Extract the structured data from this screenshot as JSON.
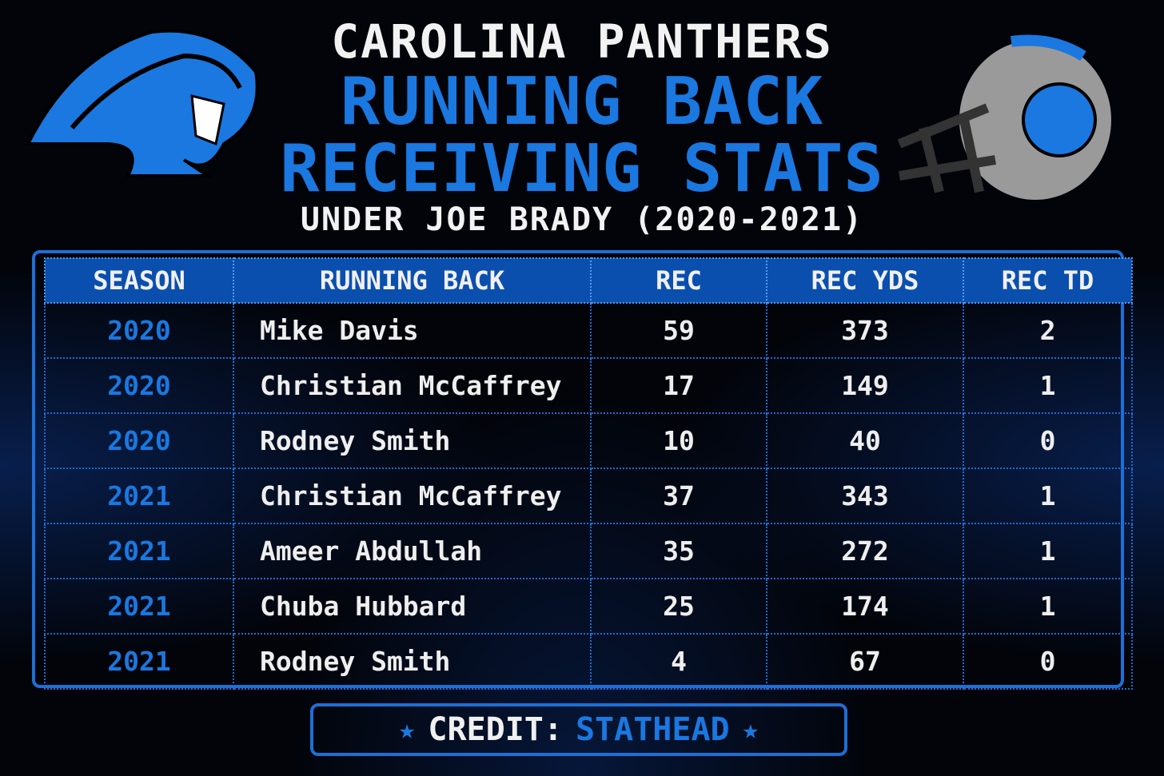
{
  "header": {
    "team": "CAROLINA PANTHERS",
    "title_lines": [
      "RUNNING BACK",
      "RECEIVING STATS"
    ],
    "subtitle": "UNDER JOE BRADY (2020-2021)"
  },
  "table": {
    "columns": [
      "SEASON",
      "RUNNING BACK",
      "REC",
      "REC YDS",
      "REC TD"
    ],
    "rows": [
      [
        2020,
        "Mike Davis",
        59,
        373,
        2
      ],
      [
        2020,
        "Christian McCaffrey",
        17,
        149,
        1
      ],
      [
        2020,
        "Rodney Smith",
        10,
        40,
        0
      ],
      [
        2021,
        "Christian McCaffrey",
        37,
        343,
        1
      ],
      [
        2021,
        "Ameer Abdullah",
        35,
        272,
        1
      ],
      [
        2021,
        "Chuba Hubbard",
        25,
        174,
        1
      ],
      [
        2021,
        "Rodney Smith",
        4,
        67,
        0
      ]
    ]
  },
  "footer": {
    "label": "CREDIT:",
    "source": "STATHEAD"
  }
}
